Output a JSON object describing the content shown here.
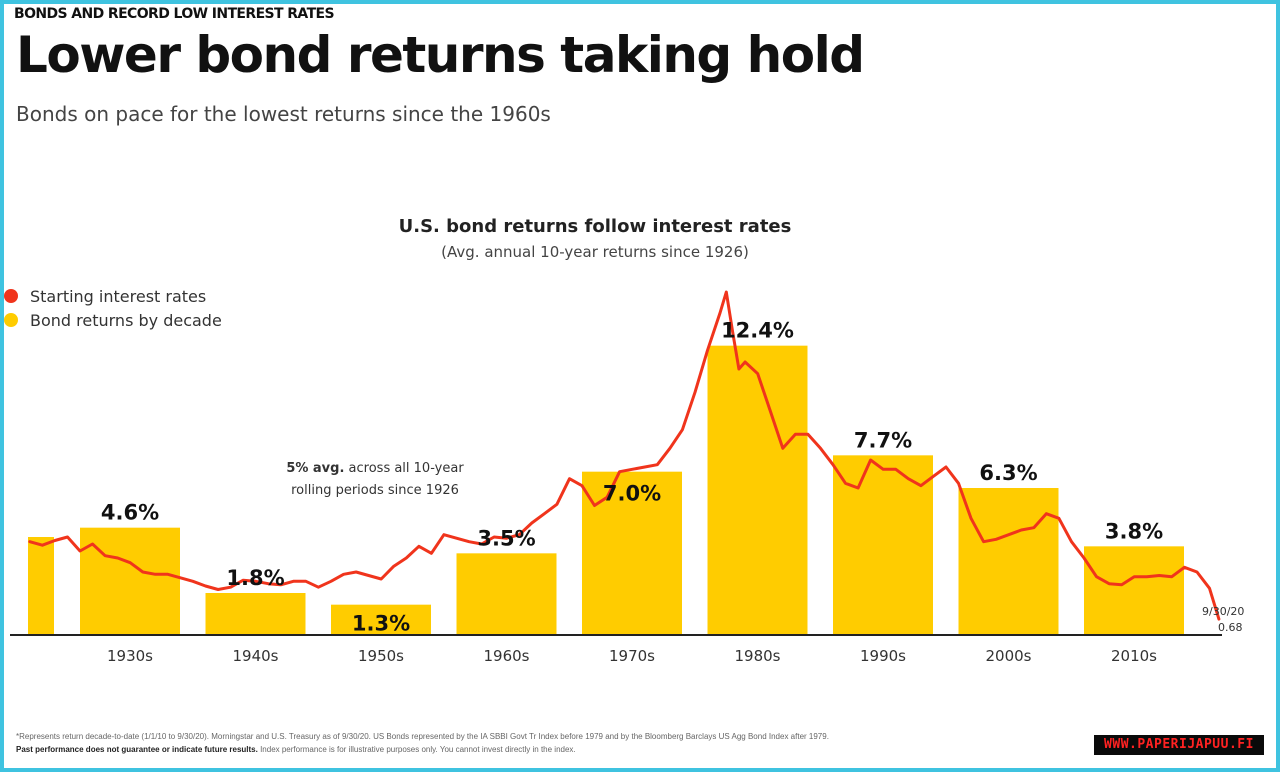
{
  "kicker": "BONDS AND RECORD LOW INTEREST RATES",
  "headline": "Lower bond returns taking hold",
  "subhead": "Bonds on pace for the lowest returns since the 1960s",
  "footnote": {
    "line1": "*Represents return decade-to-date (1/1/10 to 9/30/20). Morningstar and U.S. Treasury as of 9/30/20. US Bonds represented by the IA SBBI Govt Tr Index before 1979 and by the Bloomberg Barclays US Agg Bond Index after 1979.",
    "line2_bold": "Past performance does not guarantee or indicate future results.",
    "line2": " Index performance is for illustrative purposes only. You cannot invest directly in the index."
  },
  "watermark": "WWW.PAPERIJAPUU.FI",
  "colors": {
    "bar": "#ffcc00",
    "line": "#f0341c",
    "axis": "#222222",
    "frame": "#3fc3e0"
  },
  "chart_data": {
    "type": "bar",
    "title": "U.S. bond returns follow interest rates",
    "subtitle": "(Avg. annual 10-year returns since 1926)",
    "legend": [
      {
        "name": "Starting interest rates",
        "color": "#f0341c"
      },
      {
        "name": "Bond returns by decade",
        "color": "#ffcc00"
      }
    ],
    "legend_position": "top-left",
    "categories": [
      "1930s",
      "1940s",
      "1950s",
      "1960s",
      "1970s",
      "1980s",
      "1990s",
      "2000s",
      "2010s"
    ],
    "bar_labels": [
      "4.6%",
      "1.8%",
      "1.3%",
      "3.5%",
      "7.0%",
      "12.4%",
      "7.7%",
      "6.3%",
      "3.8%"
    ],
    "values": [
      4.6,
      1.8,
      1.3,
      3.5,
      7.0,
      12.4,
      7.7,
      6.3,
      3.8
    ],
    "partial_bar_1920s": 4.2,
    "annotation": {
      "bold": "5% avg.",
      "rest": " across all 10-year",
      "line2": "rolling periods since 1926"
    },
    "end_label": {
      "date": "9/30/20",
      "value": "0.68"
    },
    "ylim": [
      0,
      15
    ],
    "interest_rate_series": {
      "name": "Starting interest rates",
      "x": [
        1926,
        1927,
        1928,
        1929,
        1930,
        1931,
        1932,
        1933,
        1934,
        1935,
        1936,
        1937,
        1938,
        1939,
        1940,
        1941,
        1942,
        1943,
        1944,
        1945,
        1946,
        1947,
        1948,
        1949,
        1950,
        1951,
        1952,
        1953,
        1954,
        1955,
        1956,
        1957,
        1958,
        1959,
        1960,
        1961,
        1962,
        1963,
        1964,
        1965,
        1966,
        1967,
        1968,
        1969,
        1970,
        1971,
        1972,
        1973,
        1974,
        1975,
        1976,
        1977,
        1978,
        1979,
        1980,
        1981,
        1981.5,
        1982,
        1982.5,
        1983,
        1984,
        1985,
        1986,
        1987,
        1988,
        1989,
        1990,
        1991,
        1992,
        1993,
        1994,
        1995,
        1996,
        1997,
        1998,
        1999,
        2000,
        2001,
        2002,
        2003,
        2004,
        2005,
        2006,
        2007,
        2008,
        2009,
        2010,
        2011,
        2012,
        2013,
        2014,
        2015,
        2016,
        2017,
        2018,
        2019,
        2020,
        2020.75
      ],
      "y": [
        4.0,
        3.85,
        4.05,
        4.2,
        3.6,
        3.9,
        3.4,
        3.3,
        3.1,
        2.7,
        2.6,
        2.6,
        2.45,
        2.3,
        2.1,
        1.95,
        2.05,
        2.35,
        2.3,
        2.2,
        2.15,
        2.3,
        2.3,
        2.05,
        2.3,
        2.6,
        2.7,
        2.55,
        2.4,
        2.95,
        3.3,
        3.8,
        3.5,
        4.3,
        4.15,
        4.0,
        3.9,
        4.2,
        4.15,
        4.3,
        4.8,
        5.2,
        5.6,
        6.7,
        6.4,
        5.55,
        5.9,
        7.0,
        7.1,
        7.2,
        7.3,
        8.0,
        8.8,
        10.4,
        12.2,
        13.8,
        14.7,
        13.0,
        11.4,
        11.7,
        11.2,
        9.6,
        8.0,
        8.6,
        8.6,
        8.0,
        7.3,
        6.5,
        6.3,
        7.5,
        7.1,
        7.1,
        6.7,
        6.4,
        6.8,
        7.2,
        6.5,
        5.0,
        4.0,
        4.1,
        4.3,
        4.5,
        4.6,
        5.2,
        5.0,
        4.0,
        3.3,
        2.5,
        2.2,
        2.15,
        2.5,
        2.5,
        2.55,
        2.5,
        2.9,
        2.7,
        2.0,
        0.68
      ]
    }
  }
}
